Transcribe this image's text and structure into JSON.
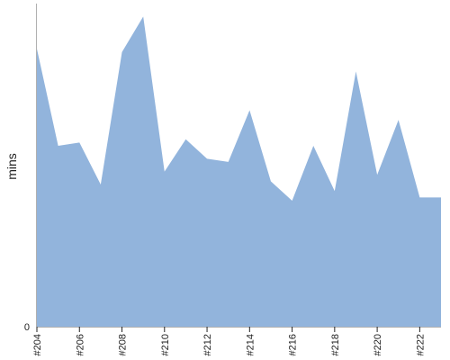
{
  "chart_data": {
    "type": "area",
    "title": "",
    "xlabel": "",
    "ylabel": "mins",
    "ylim": [
      0,
      100
    ],
    "grid": false,
    "legend": "none",
    "area_color": "#92b4dc",
    "axis_color": "#b0b0b0",
    "tick_color": "#222222",
    "y_ticks": [
      {
        "value": 0,
        "label": "0"
      }
    ],
    "x": [
      "#204",
      "#205",
      "#206",
      "#207",
      "#208",
      "#209",
      "#210",
      "#211",
      "#212",
      "#213",
      "#214",
      "#215",
      "#216",
      "#217",
      "#218",
      "#219",
      "#220",
      "#221",
      "#222",
      "#223"
    ],
    "x_tick_labels": [
      "#204",
      "#206",
      "#208",
      "#210",
      "#212",
      "#214",
      "#216",
      "#218",
      "#220",
      "#222"
    ],
    "values": [
      86,
      56,
      57,
      44,
      85,
      96,
      48,
      58,
      52,
      51,
      67,
      45,
      39,
      56,
      42,
      79,
      47,
      64,
      40,
      40
    ]
  }
}
